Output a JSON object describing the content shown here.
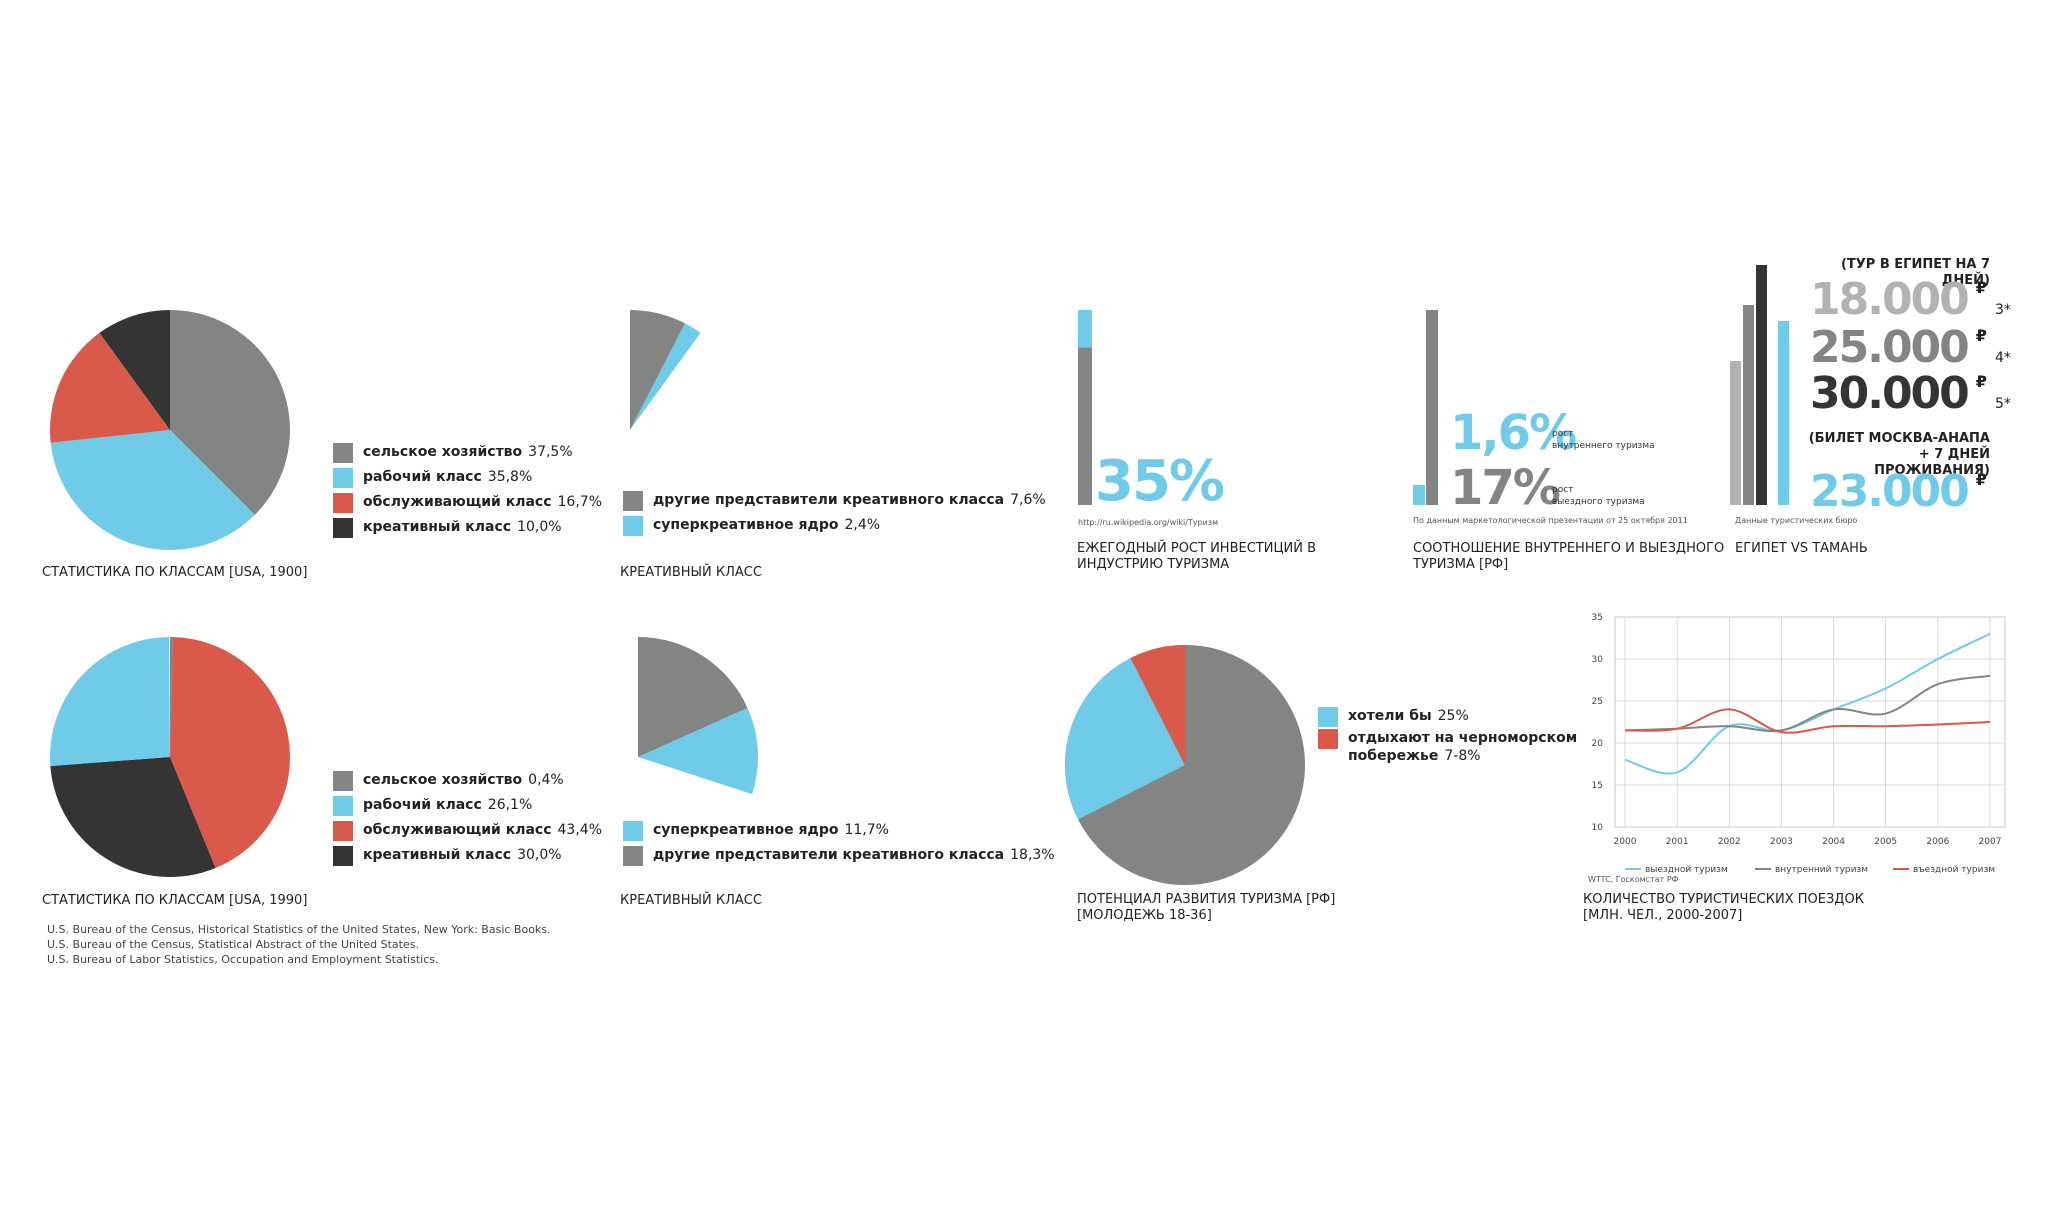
{
  "colors": {
    "gray": "#828584",
    "blue": "#6fcbe7",
    "red": "#d9594a",
    "dark": "#343434",
    "lightgray": "#b1b2b1"
  },
  "panel1": {
    "caption": "СТАТИСТИКА ПО КЛАССАМ [USA, 1900]",
    "legend": [
      {
        "label": "сельское хозяйство",
        "value": "37,5%",
        "color": "#828584"
      },
      {
        "label": "рабочий класс",
        "value": "35,8%",
        "color": "#6fcbe7"
      },
      {
        "label": "обслуживающий класс",
        "value": "16,7%",
        "color": "#d9594a"
      },
      {
        "label": "креативный класс",
        "value": "10,0%",
        "color": "#343434"
      }
    ]
  },
  "panel2": {
    "caption": "КРЕАТИВНЫЙ КЛАСС",
    "legend": [
      {
        "label": "другие представители креативного класса",
        "value": "7,6%",
        "color": "#828584"
      },
      {
        "label": "суперкреативное ядро",
        "value": "2,4%",
        "color": "#6fcbe7"
      }
    ]
  },
  "panel3": {
    "big": "35%",
    "source": "http://ru.wikipedia.org/wiki/Туризм",
    "caption_line1": "ЕЖЕГОДНЫЙ РОСТ ИНВЕСТИЦИЙ В",
    "caption_line2": "ИНДУСТРИЮ ТУРИЗМА"
  },
  "panel4": {
    "big1": "1,6%",
    "label1_line1": "рост",
    "label1_line2": "внутреннего туризма",
    "big2": "17%",
    "label2_line1": "рост",
    "label2_line2": "выездного туризма",
    "source": "По данным маркетологической презентации от 25 октября 2011",
    "caption_line1": "СООТНОШЕНИЕ ВНУТРЕННЕГО И ВЫЕЗДНОГО",
    "caption_line2": "ТУРИЗМА [РФ]"
  },
  "panel5": {
    "heading1": "(ТУР В ЕГИПЕТ НА 7 ДНЕЙ)",
    "prices": [
      {
        "num": "18.000",
        "cur": "₽",
        "stars": "3*",
        "color": "#b1b2b1"
      },
      {
        "num": "25.000",
        "cur": "₽",
        "stars": "4*",
        "color": "#828584"
      },
      {
        "num": "30.000",
        "cur": "₽",
        "stars": "5*",
        "color": "#343434"
      }
    ],
    "heading2_line1": "(БИЛЕТ МОСКВА-АНАПА",
    "heading2_line2": "+ 7 ДНЕЙ ПРОЖИВАНИЯ)",
    "price4": {
      "num": "23.000",
      "cur": "₽",
      "color": "#6fcbe7"
    },
    "source": "Данные туристических бюро",
    "caption": "ЕГИПЕТ VS ТАМАНЬ"
  },
  "panel6": {
    "caption": "СТАТИСТИКА ПО КЛАССАМ [USA, 1990]",
    "legend": [
      {
        "label": "сельское хозяйство",
        "value": "0,4%",
        "color": "#828584"
      },
      {
        "label": "рабочий класс",
        "value": "26,1%",
        "color": "#6fcbe7"
      },
      {
        "label": "обслуживающий класс",
        "value": "43,4%",
        "color": "#d9594a"
      },
      {
        "label": "креативный класс",
        "value": "30,0%",
        "color": "#343434"
      }
    ]
  },
  "panel7": {
    "caption": "КРЕАТИВНЫЙ КЛАСС",
    "legend": [
      {
        "label": "суперкреативное ядро",
        "value": "11,7%",
        "color": "#6fcbe7"
      },
      {
        "label": "другие представители креативного класса",
        "value": "18,3%",
        "color": "#828584"
      }
    ]
  },
  "panel8": {
    "caption_line1": "ПОТЕНЦИАЛ РАЗВИТИЯ ТУРИЗМА [РФ]",
    "caption_line2": "[МОЛОДЕЖЬ 18-36]",
    "legend": [
      {
        "label": "хотели бы",
        "value": "25%",
        "color": "#6fcbe7"
      },
      {
        "label": "отдыхают на черноморском",
        "label2": "побережье",
        "value": "7-8%",
        "color": "#d9594a"
      }
    ]
  },
  "panel9": {
    "legend": [
      {
        "name": "выездной туризм",
        "color": "#6fcbe7"
      },
      {
        "name": "внутренний туризм",
        "color": "#828584"
      },
      {
        "name": "въездной туризм",
        "color": "#d9594a"
      }
    ],
    "source": "WTTC, Госкомстат РФ",
    "caption_line1": "КОЛИЧЕСТВО ТУРИСТИЧЕСКИХ ПОЕЗДОК",
    "caption_line2": "[МЛН. ЧЕЛ., 2000-2007]"
  },
  "sources": [
    "U.S. Bureau of the Census, Historical Statistics of the United States, New York: Basic Books.",
    "U.S. Bureau of the Census, Statistical Abstract of the United States.",
    "U.S. Bureau of Labor Statistics, Occupation and  Employment Statistics."
  ],
  "chart_data": [
    {
      "type": "pie",
      "title": "СТАТИСТИКА ПО КЛАССАМ [USA, 1900]",
      "labels": [
        "сельское хозяйство",
        "рабочий класс",
        "обслуживающий класс",
        "креативный класс"
      ],
      "values": [
        37.5,
        35.8,
        16.7,
        10.0
      ]
    },
    {
      "type": "pie",
      "title": "КРЕАТИВНЫЙ КЛАСС",
      "labels": [
        "другие представители креативного класса",
        "суперкреативное ядро"
      ],
      "values": [
        7.6,
        2.4
      ]
    },
    {
      "type": "bar",
      "title": "ЕЖЕГОДНЫЙ РОСТ ИНВЕСТИЦИЙ В ИНДУСТРИЮ ТУРИЗМА",
      "values": [
        35
      ]
    },
    {
      "type": "bar",
      "title": "СООТНОШЕНИЕ ВНУТРЕННЕГО И ВЫЕЗДНОГО ТУРИЗМА [РФ]",
      "categories": [
        "рост внутреннего туризма",
        "рост выездного туризма"
      ],
      "values": [
        1.6,
        17
      ]
    },
    {
      "type": "bar",
      "title": "ЕГИПЕТ VS ТАМАНЬ",
      "categories": [
        "3*",
        "4*",
        "5*",
        "Тамань"
      ],
      "values": [
        18000,
        25000,
        30000,
        23000
      ]
    },
    {
      "type": "pie",
      "title": "СТАТИСТИКА ПО КЛАССАМ [USA, 1990]",
      "labels": [
        "сельское хозяйство",
        "рабочий класс",
        "обслуживающий класс",
        "креативный класс"
      ],
      "values": [
        0.4,
        26.1,
        43.4,
        30.0
      ]
    },
    {
      "type": "pie",
      "title": "КРЕАТИВНЫЙ КЛАСС",
      "labels": [
        "суперкреативное ядро",
        "другие представители креативного класса"
      ],
      "values": [
        11.7,
        18.3
      ]
    },
    {
      "type": "pie",
      "title": "ПОТЕНЦИАЛ РАЗВИТИЯ ТУРИЗМА [РФ] [МОЛОДЕЖЬ 18-36]",
      "labels": [
        "хотели бы",
        "отдыхают на черноморском побережье"
      ],
      "values": [
        25,
        7.5
      ]
    },
    {
      "type": "line",
      "title": "КОЛИЧЕСТВО ТУРИСТИЧЕСКИХ ПОЕЗДОК [МЛН. ЧЕЛ., 2000-2007]",
      "x": [
        2000,
        2001,
        2002,
        2003,
        2004,
        2005,
        2006,
        2007
      ],
      "ylim": [
        10,
        35
      ],
      "yticks": [
        10,
        15,
        20,
        25,
        30,
        35
      ],
      "series": [
        {
          "name": "выездной туризм",
          "values": [
            18,
            16.5,
            22,
            21.5,
            24,
            26.5,
            30,
            33
          ]
        },
        {
          "name": "внутренний туризм",
          "values": [
            21.5,
            21.7,
            22,
            21.5,
            24,
            23.5,
            27,
            28
          ]
        },
        {
          "name": "въездной туризм",
          "values": [
            21.5,
            21.7,
            24,
            21.3,
            22,
            22,
            22.2,
            22.5
          ]
        }
      ]
    }
  ]
}
